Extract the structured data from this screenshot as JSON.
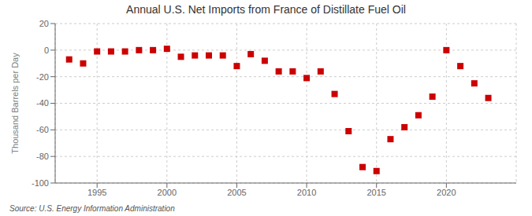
{
  "chart_data": {
    "type": "scatter",
    "title": "Annual U.S. Net Imports from France of Distillate Fuel Oil",
    "ylabel": "Thousand Barrels per Day",
    "annotations": [
      "Source: U.S. Energy Information Administration"
    ],
    "x": [
      1993,
      1994,
      1995,
      1996,
      1997,
      1998,
      1999,
      2000,
      2001,
      2002,
      2003,
      2004,
      2005,
      2006,
      2007,
      2008,
      2009,
      2010,
      2011,
      2012,
      2013,
      2014,
      2015,
      2016,
      2017,
      2018,
      2019,
      2020,
      2021,
      2022,
      2023
    ],
    "values": [
      -7,
      -10,
      -1,
      -1,
      -1,
      0,
      0,
      1,
      -5,
      -4,
      -4,
      -4,
      -12,
      -3,
      -8,
      -16,
      -16,
      -21,
      -16,
      -33,
      -61,
      -88,
      -91,
      -67,
      -58,
      -49,
      -35,
      0,
      -12,
      -25,
      -36
    ],
    "color": "#cc0000",
    "marker": "square",
    "xlim": [
      1992,
      2025
    ],
    "xticks": [
      1995,
      2000,
      2005,
      2010,
      2015,
      2020
    ],
    "ylim": [
      -100,
      20
    ],
    "yticks": [
      -100,
      -80,
      -60,
      -40,
      -20,
      0,
      20
    ],
    "grid": true
  }
}
